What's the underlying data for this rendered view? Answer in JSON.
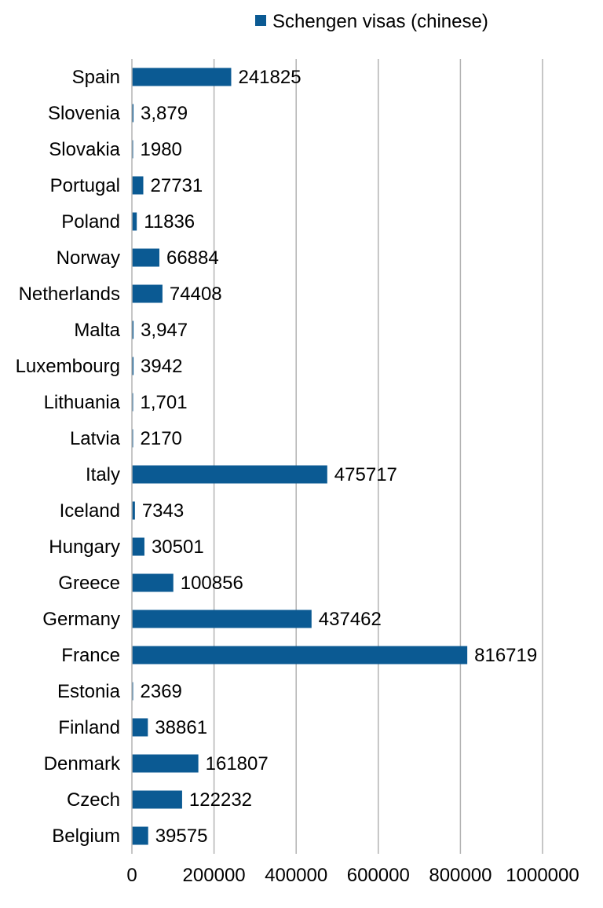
{
  "chart_data": {
    "type": "bar",
    "orientation": "horizontal",
    "title": "",
    "xlabel": "",
    "ylabel": "",
    "xlim": [
      0,
      1000000
    ],
    "x_ticks": [
      0,
      200000,
      400000,
      600000,
      800000,
      1000000
    ],
    "x_tick_labels": [
      "0",
      "200000",
      "400000",
      "600000",
      "800000",
      "1000000"
    ],
    "grid": true,
    "legend_position": "top",
    "series": [
      {
        "name": "Schengen visas (chinese)",
        "color": "#0b5a93",
        "categories": [
          "Spain",
          "Slovenia",
          "Slovakia",
          "Portugal",
          "Poland",
          "Norway",
          "Netherlands",
          "Malta",
          "Luxembourg",
          "Lithuania",
          "Latvia",
          "Italy",
          "Iceland",
          "Hungary",
          "Greece",
          "Germany",
          "France",
          "Estonia",
          "Finland",
          "Denmark",
          "Czech",
          "Belgium"
        ],
        "values": [
          241825,
          3879,
          1980,
          27731,
          11836,
          66884,
          74408,
          3947,
          3942,
          1701,
          2170,
          475717,
          7343,
          30501,
          100856,
          437462,
          816719,
          2369,
          38861,
          161807,
          122232,
          39575
        ],
        "value_labels": [
          "241825",
          "3,879",
          "1980",
          "27731",
          "11836",
          "66884",
          "74408",
          "3,947",
          "3942",
          "1,701",
          "2170",
          "475717",
          "7343",
          "30501",
          "100856",
          "437462",
          "816719",
          "2369",
          "38861",
          "161807",
          "122232",
          "39575"
        ]
      }
    ]
  }
}
